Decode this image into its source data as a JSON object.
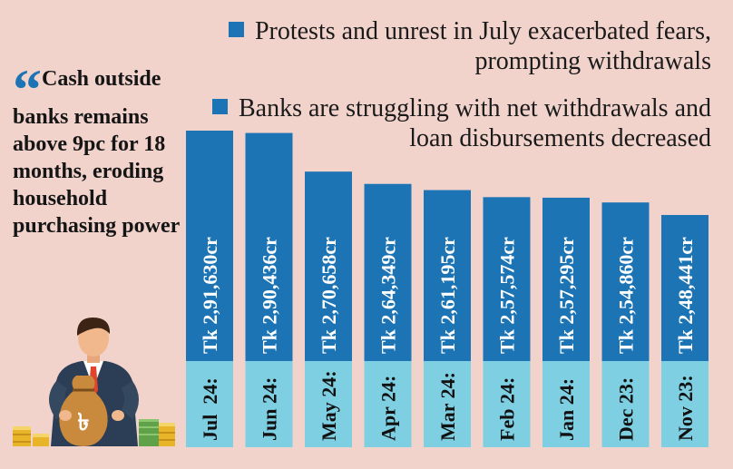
{
  "legend": [
    {
      "line1": "Protests and unrest in July exacerbated fears,",
      "line2": "prompting withdrawals"
    },
    {
      "line1": "Banks are struggling with net withdrawals and",
      "line2": "loan disbursements decreased"
    }
  ],
  "quote": {
    "mark": "“",
    "text": "Cash outside banks remains above 9pc for 18 months, eroding household purchasing power"
  },
  "colors": {
    "bar": "#1d74b4",
    "label_box": "#7fcfe3",
    "background": "#f1d3cc"
  },
  "illustration": "businessman-holding-taka-money-bag-icon",
  "chart_data": {
    "type": "bar",
    "categories": [
      "Jul  24:",
      "Jun 24:",
      "May 24:",
      "Apr 24:",
      "Mar 24:",
      "Feb 24:",
      "Jan 24:",
      "Dec 23:",
      "Nov 23:"
    ],
    "values": [
      291630,
      290436,
      270658,
      264349,
      261195,
      257574,
      257295,
      254860,
      248441
    ],
    "value_labels": [
      "Tk 2,91,630cr",
      "Tk 2,90,436cr",
      "Tk 2,70,658cr",
      "Tk 2,64,349cr",
      "Tk 2,61,195cr",
      "Tk 2,57,574cr",
      "Tk 2,57,295cr",
      "Tk 2,54,860cr",
      "Tk 2,48,441cr"
    ],
    "unit": "Tk crore"
  }
}
